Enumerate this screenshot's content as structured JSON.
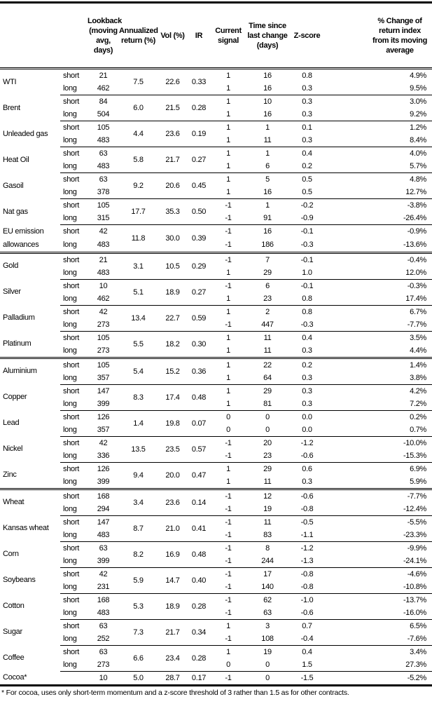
{
  "headers": {
    "lookback": "Lookback (moving avg, days)",
    "ann_return": "Annualized return (%)",
    "vol": "Vol (%)",
    "ir": "IR",
    "signal": "Current signal",
    "time_since": "Time since last change (days)",
    "zscore": "Z-score",
    "pct_change": "% Change of return index from its moving average"
  },
  "groups": [
    {
      "rows": [
        {
          "name": "WTI",
          "ann": "7.5",
          "vol": "22.6",
          "ir": "0.33",
          "legs": [
            {
              "term": "short",
              "lookback": "21",
              "signal": "1",
              "time": "16",
              "z": "0.8",
              "pct": "4.9%"
            },
            {
              "term": "long",
              "lookback": "462",
              "signal": "1",
              "time": "16",
              "z": "0.3",
              "pct": "9.5%"
            }
          ]
        },
        {
          "name": "Brent",
          "ann": "6.0",
          "vol": "21.5",
          "ir": "0.28",
          "legs": [
            {
              "term": "short",
              "lookback": "84",
              "signal": "1",
              "time": "10",
              "z": "0.3",
              "pct": "3.0%"
            },
            {
              "term": "long",
              "lookback": "504",
              "signal": "1",
              "time": "16",
              "z": "0.3",
              "pct": "9.2%"
            }
          ]
        },
        {
          "name": "Unleaded gas",
          "ann": "4.4",
          "vol": "23.6",
          "ir": "0.19",
          "legs": [
            {
              "term": "short",
              "lookback": "105",
              "signal": "1",
              "time": "1",
              "z": "0.1",
              "pct": "1.2%"
            },
            {
              "term": "long",
              "lookback": "483",
              "signal": "1",
              "time": "11",
              "z": "0.3",
              "pct": "8.4%"
            }
          ]
        },
        {
          "name": "Heat Oil",
          "ann": "5.8",
          "vol": "21.7",
          "ir": "0.27",
          "legs": [
            {
              "term": "short",
              "lookback": "63",
              "signal": "1",
              "time": "1",
              "z": "0.4",
              "pct": "4.0%"
            },
            {
              "term": "long",
              "lookback": "483",
              "signal": "1",
              "time": "6",
              "z": "0.2",
              "pct": "5.7%"
            }
          ]
        },
        {
          "name": "Gasoil",
          "ann": "9.2",
          "vol": "20.6",
          "ir": "0.45",
          "legs": [
            {
              "term": "short",
              "lookback": "63",
              "signal": "1",
              "time": "5",
              "z": "0.5",
              "pct": "4.8%"
            },
            {
              "term": "long",
              "lookback": "378",
              "signal": "1",
              "time": "16",
              "z": "0.5",
              "pct": "12.7%"
            }
          ]
        },
        {
          "name": "Nat gas",
          "ann": "17.7",
          "vol": "35.3",
          "ir": "0.50",
          "legs": [
            {
              "term": "short",
              "lookback": "105",
              "signal": "-1",
              "time": "1",
              "z": "-0.2",
              "pct": "-3.8%"
            },
            {
              "term": "long",
              "lookback": "315",
              "signal": "-1",
              "time": "91",
              "z": "-0.9",
              "pct": "-26.4%"
            }
          ]
        },
        {
          "name": "EU emission allowances",
          "ann": "11.8",
          "vol": "30.0",
          "ir": "0.39",
          "legs": [
            {
              "term": "short",
              "lookback": "42",
              "signal": "-1",
              "time": "16",
              "z": "-0.1",
              "pct": "-0.9%"
            },
            {
              "term": "long",
              "lookback": "483",
              "signal": "-1",
              "time": "186",
              "z": "-0.3",
              "pct": "-13.6%"
            }
          ]
        }
      ]
    },
    {
      "rows": [
        {
          "name": "Gold",
          "ann": "3.1",
          "vol": "10.5",
          "ir": "0.29",
          "legs": [
            {
              "term": "short",
              "lookback": "21",
              "signal": "-1",
              "time": "7",
              "z": "-0.1",
              "pct": "-0.4%"
            },
            {
              "term": "long",
              "lookback": "483",
              "signal": "1",
              "time": "29",
              "z": "1.0",
              "pct": "12.0%"
            }
          ]
        },
        {
          "name": "Silver",
          "ann": "5.1",
          "vol": "18.9",
          "ir": "0.27",
          "legs": [
            {
              "term": "short",
              "lookback": "10",
              "signal": "-1",
              "time": "6",
              "z": "-0.1",
              "pct": "-0.3%"
            },
            {
              "term": "long",
              "lookback": "462",
              "signal": "1",
              "time": "23",
              "z": "0.8",
              "pct": "17.4%"
            }
          ]
        },
        {
          "name": "Palladium",
          "ann": "13.4",
          "vol": "22.7",
          "ir": "0.59",
          "legs": [
            {
              "term": "short",
              "lookback": "42",
              "signal": "1",
              "time": "2",
              "z": "0.8",
              "pct": "6.7%"
            },
            {
              "term": "long",
              "lookback": "273",
              "signal": "-1",
              "time": "447",
              "z": "-0.3",
              "pct": "-7.7%"
            }
          ]
        },
        {
          "name": "Platinum",
          "ann": "5.5",
          "vol": "18.2",
          "ir": "0.30",
          "legs": [
            {
              "term": "short",
              "lookback": "105",
              "signal": "1",
              "time": "11",
              "z": "0.4",
              "pct": "3.5%"
            },
            {
              "term": "long",
              "lookback": "273",
              "signal": "1",
              "time": "11",
              "z": "0.3",
              "pct": "4.4%"
            }
          ]
        }
      ]
    },
    {
      "rows": [
        {
          "name": "Aluminium",
          "ann": "5.4",
          "vol": "15.2",
          "ir": "0.36",
          "legs": [
            {
              "term": "short",
              "lookback": "105",
              "signal": "1",
              "time": "22",
              "z": "0.2",
              "pct": "1.4%"
            },
            {
              "term": "long",
              "lookback": "357",
              "signal": "1",
              "time": "64",
              "z": "0.3",
              "pct": "3.8%"
            }
          ]
        },
        {
          "name": "Copper",
          "ann": "8.3",
          "vol": "17.4",
          "ir": "0.48",
          "legs": [
            {
              "term": "short",
              "lookback": "147",
              "signal": "1",
              "time": "29",
              "z": "0.3",
              "pct": "4.2%"
            },
            {
              "term": "long",
              "lookback": "399",
              "signal": "1",
              "time": "81",
              "z": "0.3",
              "pct": "7.2%"
            }
          ]
        },
        {
          "name": "Lead",
          "ann": "1.4",
          "vol": "19.8",
          "ir": "0.07",
          "legs": [
            {
              "term": "short",
              "lookback": "126",
              "signal": "0",
              "time": "0",
              "z": "0.0",
              "pct": "0.2%"
            },
            {
              "term": "long",
              "lookback": "357",
              "signal": "0",
              "time": "0",
              "z": "0.0",
              "pct": "0.7%"
            }
          ]
        },
        {
          "name": "Nickel",
          "ann": "13.5",
          "vol": "23.5",
          "ir": "0.57",
          "legs": [
            {
              "term": "short",
              "lookback": "42",
              "signal": "-1",
              "time": "20",
              "z": "-1.2",
              "pct": "-10.0%"
            },
            {
              "term": "long",
              "lookback": "336",
              "signal": "-1",
              "time": "23",
              "z": "-0.6",
              "pct": "-15.3%"
            }
          ]
        },
        {
          "name": "Zinc",
          "ann": "9.4",
          "vol": "20.0",
          "ir": "0.47",
          "legs": [
            {
              "term": "short",
              "lookback": "126",
              "signal": "1",
              "time": "29",
              "z": "0.6",
              "pct": "6.9%"
            },
            {
              "term": "long",
              "lookback": "399",
              "signal": "1",
              "time": "11",
              "z": "0.3",
              "pct": "5.9%"
            }
          ]
        }
      ]
    },
    {
      "rows": [
        {
          "name": "Wheat",
          "ann": "3.4",
          "vol": "23.6",
          "ir": "0.14",
          "legs": [
            {
              "term": "short",
              "lookback": "168",
              "signal": "-1",
              "time": "12",
              "z": "-0.6",
              "pct": "-7.7%"
            },
            {
              "term": "long",
              "lookback": "294",
              "signal": "-1",
              "time": "19",
              "z": "-0.8",
              "pct": "-12.4%"
            }
          ]
        },
        {
          "name": "Kansas wheat",
          "ann": "8.7",
          "vol": "21.0",
          "ir": "0.41",
          "legs": [
            {
              "term": "short",
              "lookback": "147",
              "signal": "-1",
              "time": "11",
              "z": "-0.5",
              "pct": "-5.5%"
            },
            {
              "term": "long",
              "lookback": "483",
              "signal": "-1",
              "time": "83",
              "z": "-1.1",
              "pct": "-23.3%"
            }
          ]
        },
        {
          "name": "Corn",
          "ann": "8.2",
          "vol": "16.9",
          "ir": "0.48",
          "legs": [
            {
              "term": "short",
              "lookback": "63",
              "signal": "-1",
              "time": "8",
              "z": "-1.2",
              "pct": "-9.9%"
            },
            {
              "term": "long",
              "lookback": "399",
              "signal": "-1",
              "time": "244",
              "z": "-1.3",
              "pct": "-24.1%"
            }
          ]
        },
        {
          "name": "Soybeans",
          "ann": "5.9",
          "vol": "14.7",
          "ir": "0.40",
          "legs": [
            {
              "term": "short",
              "lookback": "42",
              "signal": "-1",
              "time": "17",
              "z": "-0.8",
              "pct": "-4.6%"
            },
            {
              "term": "long",
              "lookback": "231",
              "signal": "-1",
              "time": "140",
              "z": "-0.8",
              "pct": "-10.8%"
            }
          ]
        },
        {
          "name": "Cotton",
          "ann": "5.3",
          "vol": "18.9",
          "ir": "0.28",
          "legs": [
            {
              "term": "short",
              "lookback": "168",
              "signal": "-1",
              "time": "62",
              "z": "-1.0",
              "pct": "-13.7%"
            },
            {
              "term": "long",
              "lookback": "483",
              "signal": "-1",
              "time": "63",
              "z": "-0.6",
              "pct": "-16.0%"
            }
          ]
        },
        {
          "name": "Sugar",
          "ann": "7.3",
          "vol": "21.7",
          "ir": "0.34",
          "legs": [
            {
              "term": "short",
              "lookback": "63",
              "signal": "1",
              "time": "3",
              "z": "0.7",
              "pct": "6.5%"
            },
            {
              "term": "long",
              "lookback": "252",
              "signal": "-1",
              "time": "108",
              "z": "-0.4",
              "pct": "-7.6%"
            }
          ]
        },
        {
          "name": "Coffee",
          "ann": "6.6",
          "vol": "23.4",
          "ir": "0.28",
          "legs": [
            {
              "term": "short",
              "lookback": "63",
              "signal": "1",
              "time": "19",
              "z": "0.4",
              "pct": "3.4%"
            },
            {
              "term": "long",
              "lookback": "273",
              "signal": "0",
              "time": "0",
              "z": "1.5",
              "pct": "27.3%"
            }
          ]
        },
        {
          "name": "Cocoa*",
          "ann": "5.0",
          "vol": "28.7",
          "ir": "0.17",
          "legs": [
            {
              "term": "",
              "lookback": "10",
              "signal": "-1",
              "time": "0",
              "z": "-1.5",
              "pct": "-5.2%"
            }
          ]
        }
      ]
    }
  ],
  "footnote": "* For cocoa, uses only short-term momentum and a z-score threshold of 3 rather than 1.5 as for other contracts."
}
